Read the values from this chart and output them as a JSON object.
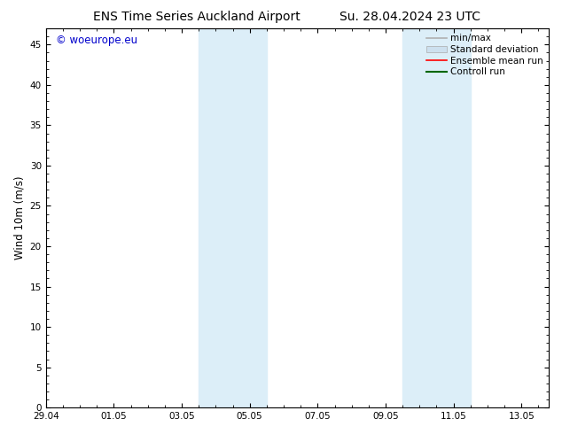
{
  "title_left": "ENS Time Series Auckland Airport",
  "title_right": "Su. 28.04.2024 23 UTC",
  "ylabel": "Wind 10m (m/s)",
  "xlabel_ticks": [
    "29.04",
    "01.05",
    "03.05",
    "05.05",
    "07.05",
    "09.05",
    "11.05",
    "13.05"
  ],
  "x_tick_positions": [
    0,
    2,
    4,
    6,
    8,
    10,
    12,
    14
  ],
  "xlim": [
    0,
    14.8
  ],
  "ylim": [
    0,
    47
  ],
  "yticks": [
    0,
    5,
    10,
    15,
    20,
    25,
    30,
    35,
    40,
    45
  ],
  "shaded_bands": [
    {
      "x_start": 4.5,
      "x_end": 6.5
    },
    {
      "x_start": 10.5,
      "x_end": 12.5
    }
  ],
  "shaded_color": "#dceef8",
  "copyright_text": "© woeurope.eu",
  "copyright_color": "#0000cc",
  "legend_entries": [
    {
      "label": "min/max",
      "color": "#b0b0b0",
      "type": "line",
      "linewidth": 1.2
    },
    {
      "label": "Standard deviation",
      "color": "#cde0ef",
      "type": "patch"
    },
    {
      "label": "Ensemble mean run",
      "color": "#ff0000",
      "type": "line",
      "linewidth": 1.2
    },
    {
      "label": "Controll run",
      "color": "#006600",
      "type": "line",
      "linewidth": 1.5
    }
  ],
  "background_color": "#ffffff",
  "plot_bg_color": "#ffffff",
  "tick_label_fontsize": 7.5,
  "title_fontsize": 10,
  "ylabel_fontsize": 8.5,
  "copyright_fontsize": 8.5,
  "legend_fontsize": 7.5
}
